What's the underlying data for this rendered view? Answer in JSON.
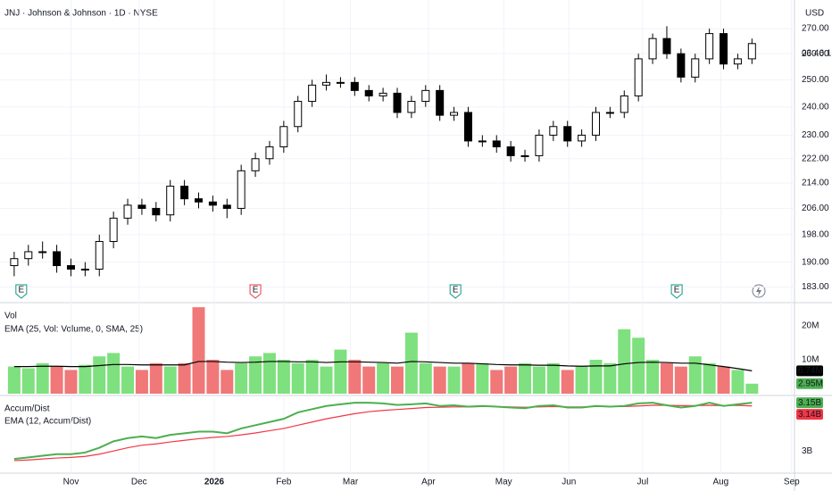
{
  "chart_data": [
    {
      "type": "candlestick",
      "title": "JNJ · Johnson & Johnson · 1D · NYSE",
      "currency": "USD",
      "countdown": "03:46:16",
      "log_scale": true,
      "grid": true,
      "up_color": "#ffffff",
      "down_color": "#000000",
      "xlim": [
        -1,
        55
      ],
      "ylim": [
        179,
        280
      ],
      "yticks": [
        {
          "value": 183,
          "label": "183.00"
        },
        {
          "value": 190,
          "label": "190.00"
        },
        {
          "value": 198,
          "label": "198.00"
        },
        {
          "value": 206,
          "label": "206.00"
        },
        {
          "value": 214,
          "label": "214.00"
        },
        {
          "value": 222,
          "label": "222.00"
        },
        {
          "value": 230,
          "label": "230.00"
        },
        {
          "value": 240,
          "label": "240.00"
        },
        {
          "value": 250,
          "label": "250.00"
        },
        {
          "value": 260,
          "label": "260.00"
        },
        {
          "value": 270,
          "label": "270.00"
        }
      ],
      "xticks": [
        {
          "value": 4,
          "label": "Nov"
        },
        {
          "value": 8.8,
          "label": "Dec"
        },
        {
          "value": 14.1,
          "label": "2026"
        },
        {
          "value": 19,
          "label": "Feb"
        },
        {
          "value": 23.7,
          "label": "Mar"
        },
        {
          "value": 29.2,
          "label": "Apr"
        },
        {
          "value": 34.5,
          "label": "May"
        },
        {
          "value": 39.1,
          "label": "Jun"
        },
        {
          "value": 44.3,
          "label": "Jul"
        },
        {
          "value": 49.8,
          "label": "Aug"
        },
        {
          "value": 54.8,
          "label": "Sep"
        }
      ],
      "events": [
        {
          "x": 0.5,
          "label": "E"
        },
        {
          "x": 17,
          "label": "E"
        },
        {
          "x": 31.1,
          "label": "E"
        },
        {
          "x": 46.7,
          "label": "E"
        }
      ],
      "open": [
        189,
        191,
        193,
        193,
        189,
        188,
        188,
        196,
        203,
        207,
        206,
        204,
        213,
        209,
        208,
        207,
        206,
        218,
        222,
        226,
        233,
        242,
        248,
        249,
        249,
        246,
        244,
        245,
        238,
        242,
        246,
        237,
        238,
        228,
        228,
        226,
        223,
        223,
        230,
        233,
        228,
        230,
        238,
        238,
        244,
        258,
        266,
        260,
        251,
        258,
        268,
        256,
        258
      ],
      "high": [
        193,
        195,
        196,
        195,
        191,
        190,
        198,
        205,
        209,
        209,
        208,
        215,
        215,
        211,
        210,
        209,
        220,
        224,
        228,
        235,
        244,
        250,
        252,
        251,
        251,
        248,
        247,
        247,
        244,
        248,
        248,
        240,
        240,
        230,
        230,
        228,
        225,
        232,
        235,
        235,
        232,
        240,
        240,
        246,
        260,
        268,
        271,
        262,
        260,
        270,
        270,
        260,
        266
      ],
      "low": [
        186,
        189,
        191,
        187,
        186,
        186,
        186,
        194,
        201,
        204,
        202,
        202,
        207,
        206,
        205,
        203,
        204,
        216,
        220,
        224,
        231,
        240,
        246,
        247,
        244,
        242,
        242,
        236,
        236,
        240,
        235,
        235,
        226,
        226,
        224,
        221,
        221,
        221,
        228,
        226,
        226,
        228,
        236,
        236,
        242,
        256,
        258,
        249,
        249,
        256,
        254,
        254,
        256
      ],
      "close": [
        191,
        193,
        193,
        189,
        188,
        188,
        196,
        203,
        207,
        206,
        204,
        213,
        209,
        208,
        207,
        206,
        218,
        222,
        226,
        233,
        242,
        248,
        249,
        249,
        246,
        244,
        245,
        238,
        242,
        246,
        237,
        238,
        228,
        228,
        226,
        223,
        223,
        230,
        233,
        228,
        230,
        238,
        238,
        244,
        258,
        266,
        260,
        251,
        258,
        268,
        256,
        258,
        264
      ]
    },
    {
      "type": "volume",
      "title": "Vol",
      "ylim": [
        0,
        25.8
      ],
      "yticks": [
        {
          "value": 10,
          "label": "10M"
        },
        {
          "value": 20,
          "label": "20M"
        }
      ],
      "up_color": "#7ee07e",
      "down_color": "#f07878",
      "series": [
        {
          "name": "Volume",
          "color": "#4caf50",
          "last_value_label": "2.95M",
          "values": [
            8,
            7.5,
            9,
            8,
            7,
            8.5,
            11,
            12,
            8,
            7,
            9,
            8,
            9,
            25.5,
            10,
            7,
            9,
            11,
            12,
            10,
            9,
            10,
            8,
            13,
            10,
            8,
            9,
            8,
            18,
            9,
            8,
            8,
            9,
            9,
            7,
            8,
            9,
            8,
            9,
            7,
            8,
            10,
            9,
            19,
            16.5,
            10,
            9,
            8,
            11,
            9,
            8,
            7,
            2.95
          ]
        },
        {
          "name": "EMA (25, Vol: Volume, 0, SMA, 25)",
          "color": "#000000",
          "last_value_label": "6.74M",
          "values": [
            8,
            8,
            8.1,
            8.1,
            8,
            8,
            8.3,
            8.6,
            8.6,
            8.5,
            8.5,
            8.5,
            8.5,
            9.5,
            9.5,
            9.3,
            9.2,
            9.3,
            9.5,
            9.5,
            9.4,
            9.4,
            9.2,
            9.4,
            9.4,
            9.3,
            9.2,
            9,
            9.5,
            9.4,
            9.2,
            9,
            9,
            8.8,
            8.6,
            8.5,
            8.5,
            8.4,
            8.4,
            8.2,
            8.1,
            8.2,
            8.2,
            8.8,
            9.2,
            9.3,
            9.2,
            9,
            9,
            8.5,
            8,
            7.4,
            6.74
          ]
        }
      ]
    },
    {
      "type": "line",
      "title": "Accum/Dist",
      "ylim": [
        2.931,
        3.167
      ],
      "yticks": [
        {
          "value": 3,
          "label": "3B"
        }
      ],
      "series": [
        {
          "name": "Accum/Dist",
          "color": "#4caf50",
          "last_value_label": "3.15B",
          "values": [
            2.975,
            2.98,
            2.985,
            2.99,
            2.99,
            2.995,
            3.01,
            3.03,
            3.04,
            3.045,
            3.04,
            3.05,
            3.055,
            3.06,
            3.06,
            3.055,
            3.07,
            3.08,
            3.09,
            3.1,
            3.12,
            3.13,
            3.14,
            3.145,
            3.15,
            3.15,
            3.148,
            3.143,
            3.145,
            3.148,
            3.14,
            3.142,
            3.138,
            3.14,
            3.138,
            3.135,
            3.133,
            3.14,
            3.142,
            3.135,
            3.135,
            3.14,
            3.138,
            3.14,
            3.148,
            3.15,
            3.142,
            3.135,
            3.14,
            3.15,
            3.14,
            3.145,
            3.15
          ]
        },
        {
          "name": "EMA (12, Accum/Dist)",
          "color": "#f23645",
          "last_value_label": "3.14B",
          "values": [
            2.97,
            2.972,
            2.975,
            2.978,
            2.98,
            2.983,
            2.99,
            3,
            3.01,
            3.018,
            3.022,
            3.028,
            3.033,
            3.038,
            3.042,
            3.045,
            3.05,
            3.056,
            3.063,
            3.07,
            3.08,
            3.09,
            3.1,
            3.108,
            3.116,
            3.122,
            3.126,
            3.129,
            3.132,
            3.135,
            3.136,
            3.137,
            3.137,
            3.138,
            3.138,
            3.137,
            3.136,
            3.137,
            3.138,
            3.137,
            3.137,
            3.138,
            3.138,
            3.138,
            3.14,
            3.142,
            3.142,
            3.141,
            3.141,
            3.142,
            3.141,
            3.142,
            3.14
          ]
        }
      ]
    }
  ]
}
